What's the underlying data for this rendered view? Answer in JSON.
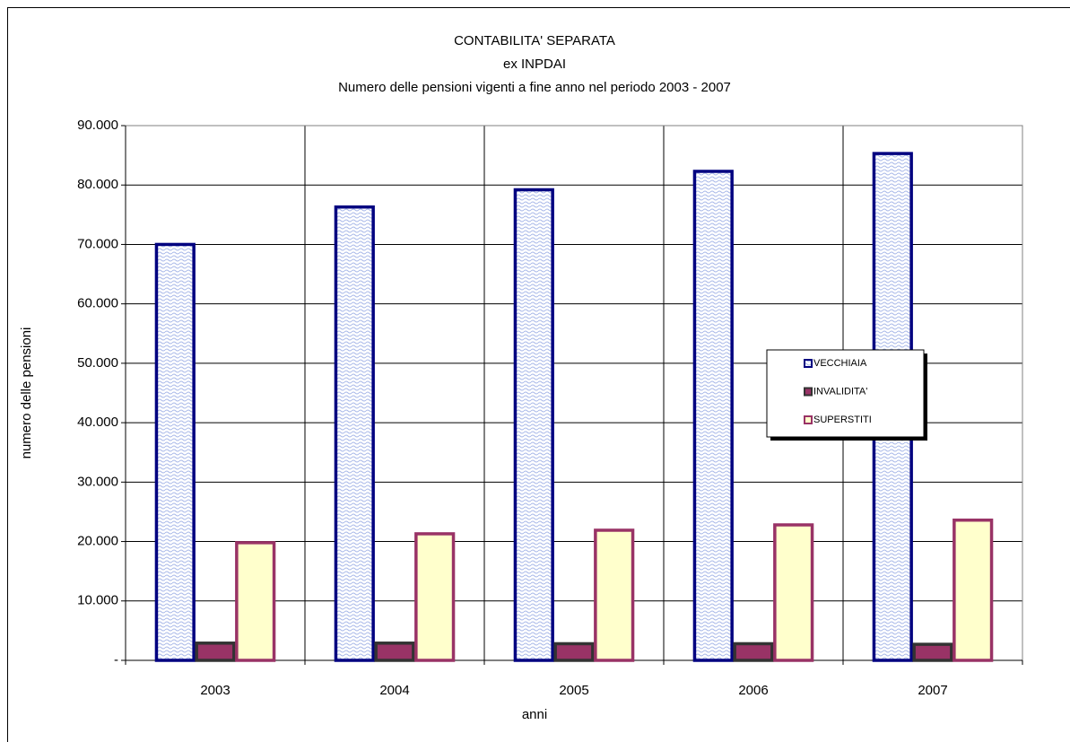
{
  "chart_data": {
    "type": "bar",
    "title": [
      "CONTABILITA' SEPARATA",
      "ex INPDAI",
      "Numero delle pensioni vigenti a fine anno nel periodo 2003 - 2007"
    ],
    "xlabel": "anni",
    "ylabel": "numero delle pensioni",
    "categories": [
      "2003",
      "2004",
      "2005",
      "2006",
      "2007"
    ],
    "series": [
      {
        "name": "VECCHIAIA",
        "color": "#a8b8e8",
        "edgecolor": "#000080",
        "values": [
          70000,
          76300,
          79200,
          82300,
          85300
        ]
      },
      {
        "name": "INVALIDITA'",
        "color": "#993366",
        "edgecolor": "#333333",
        "values": [
          2900,
          2900,
          2800,
          2800,
          2700
        ]
      },
      {
        "name": "SUPERSTITI",
        "color": "#ffffcc",
        "edgecolor": "#993366",
        "values": [
          19800,
          21300,
          21900,
          22800,
          23600
        ]
      }
    ],
    "ylim": [
      0,
      90000
    ],
    "yticks": [
      {
        "value": 0,
        "label": "-"
      },
      {
        "value": 10000,
        "label": "10.000"
      },
      {
        "value": 20000,
        "label": "20.000"
      },
      {
        "value": 30000,
        "label": "30.000"
      },
      {
        "value": 40000,
        "label": "40.000"
      },
      {
        "value": 50000,
        "label": "50.000"
      },
      {
        "value": 60000,
        "label": "60.000"
      },
      {
        "value": 70000,
        "label": "70.000"
      },
      {
        "value": 80000,
        "label": "80.000"
      },
      {
        "value": 90000,
        "label": "90.000"
      }
    ],
    "grid": true,
    "legend": "right"
  }
}
